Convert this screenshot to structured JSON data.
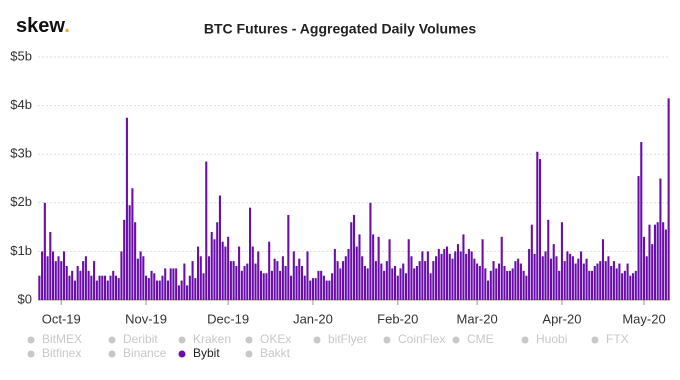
{
  "logo": {
    "text": "skew",
    "dot": "."
  },
  "chart_data": {
    "type": "bar",
    "title": "BTC Futures - Aggregated Daily Volumes",
    "categories": [
      null,
      null,
      null,
      null,
      null,
      null,
      null,
      null,
      "Oct-19",
      null,
      null,
      null,
      null,
      null,
      null,
      null,
      null,
      null,
      null,
      null,
      null,
      null,
      null,
      null,
      null,
      null,
      null,
      null,
      null,
      null,
      null,
      null,
      null,
      null,
      null,
      null,
      null,
      null,
      null,
      "Nov-19",
      null,
      null,
      null,
      null,
      null,
      null,
      null,
      null,
      null,
      null,
      null,
      null,
      null,
      null,
      null,
      null,
      null,
      null,
      null,
      null,
      null,
      null,
      null,
      null,
      null,
      null,
      null,
      null,
      null,
      "Dec-19",
      null,
      null,
      null,
      null,
      null,
      null,
      null,
      null,
      null,
      null,
      null,
      null,
      null,
      null,
      null,
      null,
      null,
      null,
      null,
      null,
      null,
      null,
      null,
      null,
      null,
      null,
      null,
      null,
      null,
      null,
      "Jan-20",
      null,
      null,
      null,
      null,
      null,
      null,
      null,
      null,
      null,
      null,
      null,
      null,
      null,
      null,
      null,
      null,
      null,
      null,
      null,
      null,
      null,
      null,
      null,
      null,
      null,
      null,
      null,
      null,
      null,
      null,
      "Feb-20",
      null,
      null,
      null,
      null,
      null,
      null,
      null,
      null,
      null,
      null,
      null,
      null,
      null,
      null,
      null,
      null,
      null,
      null,
      null,
      null,
      null,
      null,
      null,
      null,
      null,
      null,
      null,
      null,
      "Mar-20",
      null,
      null,
      null,
      null,
      null,
      null,
      null,
      null,
      null,
      null,
      null,
      null,
      null,
      null,
      null,
      null,
      null,
      null,
      null,
      null,
      null,
      null,
      null,
      null,
      null,
      null,
      null,
      null,
      null,
      null,
      "Apr-20",
      null,
      null,
      null,
      null,
      null,
      null,
      null,
      null,
      null,
      null,
      null,
      null,
      null,
      null,
      null,
      null,
      null,
      null,
      null,
      null,
      null,
      null,
      null,
      null,
      null,
      null,
      null,
      null,
      null,
      "May-20",
      null,
      null,
      null,
      null,
      null,
      null,
      null,
      null,
      null
    ],
    "series": [
      {
        "name": "Bybit",
        "color": "#6a0dad",
        "values": [
          0.5,
          1.0,
          2.0,
          0.9,
          1.4,
          1.0,
          0.8,
          0.9,
          0.8,
          1.0,
          0.7,
          0.5,
          0.6,
          0.4,
          0.7,
          0.6,
          0.8,
          0.9,
          0.6,
          0.5,
          0.8,
          0.4,
          0.5,
          0.5,
          0.5,
          0.4,
          0.5,
          0.6,
          0.5,
          0.45,
          1.0,
          1.65,
          3.75,
          1.95,
          2.3,
          1.6,
          0.85,
          1.0,
          0.9,
          0.5,
          0.45,
          0.6,
          0.55,
          0.4,
          0.4,
          0.5,
          0.65,
          0.4,
          0.65,
          0.65,
          0.65,
          0.3,
          0.4,
          0.75,
          0.3,
          0.5,
          0.8,
          0.45,
          1.1,
          0.9,
          0.55,
          2.85,
          0.9,
          1.4,
          1.25,
          1.6,
          2.15,
          1.2,
          1.1,
          1.3,
          0.8,
          0.8,
          0.7,
          1.1,
          0.6,
          0.7,
          0.75,
          1.9,
          1.1,
          0.75,
          1.0,
          0.6,
          0.55,
          0.55,
          1.2,
          0.6,
          0.85,
          0.8,
          0.6,
          0.9,
          0.7,
          1.75,
          0.5,
          1.0,
          0.7,
          0.85,
          0.7,
          0.5,
          1.0,
          0.4,
          0.45,
          0.45,
          0.6,
          0.6,
          0.5,
          0.4,
          0.4,
          0.55,
          1.05,
          0.8,
          0.65,
          0.8,
          0.9,
          1.05,
          1.6,
          1.75,
          1.1,
          1.35,
          0.9,
          0.7,
          0.65,
          2.0,
          1.35,
          0.8,
          1.3,
          0.75,
          0.6,
          0.8,
          1.25,
          0.65,
          0.7,
          0.5,
          0.65,
          0.75,
          0.55,
          1.25,
          0.9,
          0.65,
          0.7,
          0.8,
          1.0,
          0.8,
          1.0,
          0.55,
          0.8,
          0.9,
          1.05,
          0.95,
          1.05,
          1.1,
          0.95,
          0.85,
          1.0,
          1.15,
          1.0,
          1.35,
          0.95,
          1.05,
          1.0,
          0.85,
          0.75,
          0.7,
          1.25,
          0.65,
          0.4,
          0.6,
          0.8,
          0.65,
          0.75,
          1.3,
          0.7,
          0.6,
          0.6,
          0.65,
          0.8,
          0.85,
          0.75,
          0.6,
          0.5,
          1.05,
          1.55,
          0.95,
          3.05,
          2.9,
          0.9,
          1.0,
          1.65,
          0.85,
          1.15,
          0.9,
          0.6,
          1.6,
          0.8,
          1.0,
          0.95,
          0.9,
          0.75,
          0.85,
          1.0,
          0.75,
          0.85,
          0.6,
          0.6,
          0.7,
          0.75,
          0.8,
          1.25,
          0.8,
          0.9,
          0.7,
          0.8,
          0.65,
          0.75,
          0.55,
          0.6,
          0.75,
          0.5,
          0.55,
          0.6,
          2.55,
          3.25,
          1.3,
          0.9,
          1.55,
          1.15,
          1.55,
          1.6,
          2.5,
          1.6,
          1.45,
          4.15
        ]
      }
    ],
    "legend_items": [
      {
        "name": "BitMEX",
        "active": false
      },
      {
        "name": "Deribit",
        "active": false
      },
      {
        "name": "Kraken",
        "active": false
      },
      {
        "name": "OKEx",
        "active": false
      },
      {
        "name": "bitFlyer",
        "active": false
      },
      {
        "name": "CoinFlex",
        "active": false
      },
      {
        "name": "CME",
        "active": false
      },
      {
        "name": "Huobi",
        "active": false
      },
      {
        "name": "FTX",
        "active": false
      },
      {
        "name": "Bitfinex",
        "active": false
      },
      {
        "name": "Binance",
        "active": false
      },
      {
        "name": "Bybit",
        "active": true
      },
      {
        "name": "Bakkt",
        "active": false
      }
    ],
    "inactive_color": "#c8c8c8",
    "ylim": [
      0,
      5
    ],
    "yticks": [
      {
        "value": 0,
        "label": "$0"
      },
      {
        "value": 1,
        "label": "$1b"
      },
      {
        "value": 2,
        "label": "$2b"
      },
      {
        "value": 3,
        "label": "$3b"
      },
      {
        "value": 4,
        "label": "$4b"
      },
      {
        "value": 5,
        "label": "$5b"
      }
    ],
    "grid": true
  }
}
